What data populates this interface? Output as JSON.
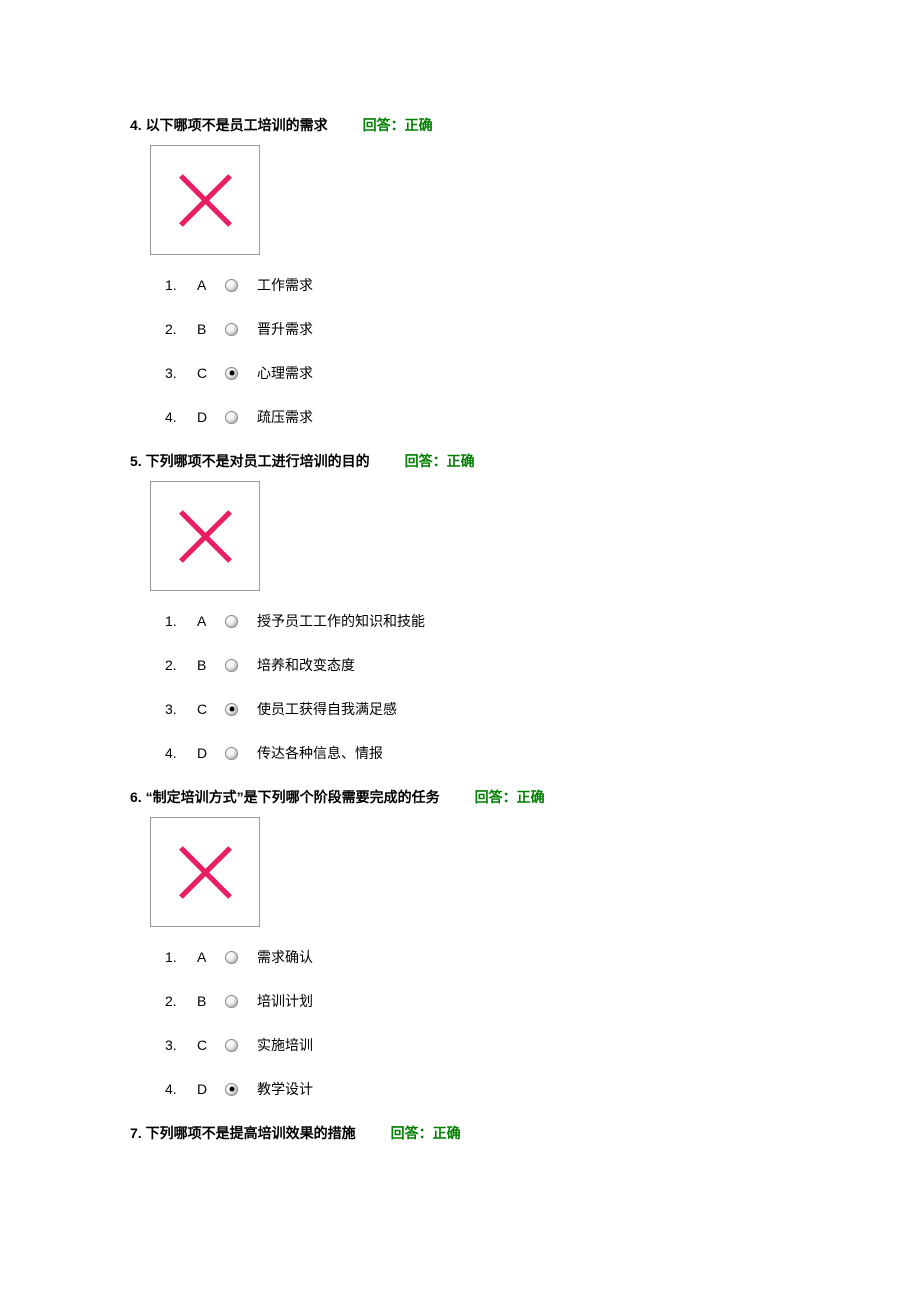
{
  "colors": {
    "text": "#000000",
    "status_text": "#008000",
    "cross_stroke": "#e91e63",
    "box_border": "#999999",
    "radio_border": "#888888",
    "background": "#ffffff"
  },
  "cross_icon": {
    "stroke_width": 8,
    "stroke": "#e91e63",
    "size": 65,
    "line_cap": "square"
  },
  "questions": [
    {
      "number": "4.",
      "text": "以下哪项不是员工培训的需求",
      "status": "回答：正确",
      "selected_index": 2,
      "options": [
        {
          "num": "1.",
          "letter": "A",
          "label": "工作需求"
        },
        {
          "num": "2.",
          "letter": "B",
          "label": "晋升需求"
        },
        {
          "num": "3.",
          "letter": "C",
          "label": "心理需求"
        },
        {
          "num": "4.",
          "letter": "D",
          "label": "疏压需求"
        }
      ]
    },
    {
      "number": "5.",
      "text": "下列哪项不是对员工进行培训的目的",
      "status": "回答：正确",
      "selected_index": 2,
      "options": [
        {
          "num": "1.",
          "letter": "A",
          "label": "授予员工工作的知识和技能"
        },
        {
          "num": "2.",
          "letter": "B",
          "label": "培养和改变态度"
        },
        {
          "num": "3.",
          "letter": "C",
          "label": "使员工获得自我满足感"
        },
        {
          "num": "4.",
          "letter": "D",
          "label": "传达各种信息、情报"
        }
      ]
    },
    {
      "number": "6.",
      "text": "“制定培训方式”是下列哪个阶段需要完成的任务",
      "status": "回答：正确",
      "selected_index": 3,
      "options": [
        {
          "num": "1.",
          "letter": "A",
          "label": "需求确认"
        },
        {
          "num": "2.",
          "letter": "B",
          "label": "培训计划"
        },
        {
          "num": "3.",
          "letter": "C",
          "label": "实施培训"
        },
        {
          "num": "4.",
          "letter": "D",
          "label": "教学设计"
        }
      ]
    },
    {
      "number": "7.",
      "text": "下列哪项不是提高培训效果的措施",
      "status": "回答：正确",
      "selected_index": null,
      "options": []
    }
  ]
}
